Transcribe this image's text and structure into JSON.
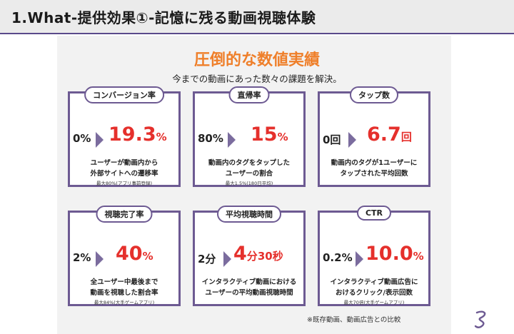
{
  "header": {
    "title": "1.What-提供効果①-記憶に残る動画視聴体験"
  },
  "main": {
    "title": "圧倒的な数値実績",
    "subtitle": "今までの動画にあった数々の課題を解決。"
  },
  "cards": [
    {
      "label": "コンバージョン率",
      "before": "0%",
      "after_value": "19.3",
      "after_unit": "%",
      "desc_line1": "ユーザーが動画内から",
      "desc_line2": "外部サイトへの遷移率",
      "note": "最大80%(アプリ事前登録)"
    },
    {
      "label": "直帰率",
      "before": "80%",
      "after_value": "15",
      "after_unit": "%",
      "desc_line1": "動画内のタグをタップした",
      "desc_line2": "ユーザーの割合",
      "note": "最大1.5%(180日平均)"
    },
    {
      "label": "タップ数",
      "before": "0回",
      "after_value": "6.7",
      "after_unit": "回",
      "desc_line1": "動画内のタグが1ユーザーに",
      "desc_line2": "タップされた平均回数",
      "note": ""
    },
    {
      "label": "視聴完了率",
      "before": "2%",
      "after_value": "40",
      "after_unit": "%",
      "desc_line1": "全ユーザー中最後まで",
      "desc_line2": "動画を視聴した割合率",
      "note": "最大84%(大手ゲームアプリ)"
    },
    {
      "label": "平均視聴時間",
      "before": "2分",
      "after_value": "4",
      "after_unit": "分",
      "after_value2": "30",
      "after_unit2": "秒",
      "desc_line1": "インタラクティブ動画における",
      "desc_line2": "ユーザーの平均動画視聴時間",
      "note": ""
    },
    {
      "label": "CTR",
      "before": "0.2%",
      "after_value": "10.0",
      "after_unit": "%",
      "desc_line1": "インタラクティブ動画広告に",
      "desc_line2": "おけるクリック/表示回数",
      "note": "最大70倍(大手ゲームアプリ)"
    }
  ],
  "footnote": "※既存動画、動画広告との比較",
  "colors": {
    "accent_orange": "#ef7f2a",
    "value_red": "#e5302c",
    "frame_purple": "#6d5a92",
    "header_bg": "#ebebeb"
  }
}
